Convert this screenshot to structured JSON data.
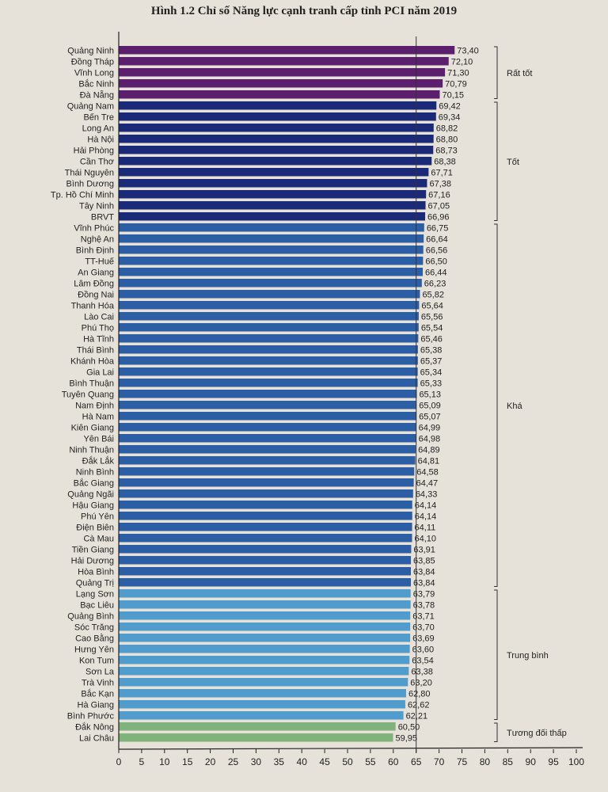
{
  "chart_data": {
    "type": "bar",
    "orientation": "horizontal",
    "title": "Hình 1.2 Chỉ số Năng lực cạnh tranh cấp tỉnh PCI năm 2019",
    "xlabel": "",
    "ylabel": "",
    "xlim": [
      0,
      100
    ],
    "xticks": [
      "0",
      "5",
      "10",
      "15",
      "20",
      "25",
      "30",
      "35",
      "40",
      "45",
      "50",
      "55",
      "60",
      "65",
      "70",
      "75",
      "80",
      "85",
      "90",
      "95",
      "100"
    ],
    "reference_line": 65,
    "categories": [
      "Quảng Ninh",
      "Đồng Tháp",
      "Vĩnh Long",
      "Bắc Ninh",
      "Đà Nẵng",
      "Quảng Nam",
      "Bến Tre",
      "Long An",
      "Hà Nội",
      "Hải Phòng",
      "Cần Thơ",
      "Thái Nguyên",
      "Bình Dương",
      "Tp. Hồ Chí Minh",
      "Tây Ninh",
      "BRVT",
      "Vĩnh Phúc",
      "Nghệ An",
      "Bình Định",
      "TT-Huế",
      "An Giang",
      "Lâm Đồng",
      "Đồng Nai",
      "Thanh Hóa",
      "Lào Cai",
      "Phú Thọ",
      "Hà Tĩnh",
      "Thái Bình",
      "Khánh Hòa",
      "Gia Lai",
      "Bình Thuận",
      "Tuyên Quang",
      "Nam Định",
      "Hà Nam",
      "Kiên Giang",
      "Yên Bái",
      "Ninh Thuận",
      "Đắk Lắk",
      "Ninh Bình",
      "Bắc Giang",
      "Quảng Ngãi",
      "Hậu Giang",
      "Phú Yên",
      "Điện Biên",
      "Cà Mau",
      "Tiền Giang",
      "Hải Dương",
      "Hòa Bình",
      "Quảng Trị",
      "Lạng Sơn",
      "Bạc Liêu",
      "Quảng Bình",
      "Sóc Trăng",
      "Cao Bằng",
      "Hưng Yên",
      "Kon Tum",
      "Sơn La",
      "Trà Vinh",
      "Bắc Kạn",
      "Hà Giang",
      "Bình Phước",
      "Đắk Nông",
      "Lai Châu"
    ],
    "values": [
      73.4,
      72.1,
      71.3,
      70.79,
      70.15,
      69.42,
      69.34,
      68.82,
      68.8,
      68.73,
      68.38,
      67.71,
      67.38,
      67.16,
      67.05,
      66.96,
      66.75,
      66.64,
      66.56,
      66.5,
      66.44,
      66.23,
      65.82,
      65.64,
      65.56,
      65.54,
      65.46,
      65.38,
      65.37,
      65.34,
      65.33,
      65.13,
      65.09,
      65.07,
      64.99,
      64.98,
      64.89,
      64.81,
      64.58,
      64.47,
      64.33,
      64.14,
      64.14,
      64.11,
      64.1,
      63.91,
      63.85,
      63.84,
      63.84,
      63.79,
      63.78,
      63.71,
      63.7,
      63.69,
      63.6,
      63.54,
      63.38,
      63.2,
      62.8,
      62.62,
      62.21,
      60.5,
      59.95
    ],
    "value_labels": [
      "73,40",
      "72,10",
      "71,30",
      "70,79",
      "70,15",
      "69,42",
      "69,34",
      "68,82",
      "68,80",
      "68,73",
      "68,38",
      "67,71",
      "67,38",
      "67,16",
      "67,05",
      "66,96",
      "66,75",
      "66,64",
      "66,56",
      "66,50",
      "66,44",
      "66,23",
      "65,82",
      "65,64",
      "65,56",
      "65,54",
      "65,46",
      "65,38",
      "65,37",
      "65,34",
      "65,33",
      "65,13",
      "65,09",
      "65,07",
      "64,99",
      "64,98",
      "64,89",
      "64,81",
      "64,58",
      "64,47",
      "64,33",
      "64,14",
      "64,14",
      "64,11",
      "64,10",
      "63,91",
      "63,85",
      "63,84",
      "63,84",
      "63,79",
      "63,78",
      "63,71",
      "63,70",
      "63,69",
      "63,60",
      "63,54",
      "63,38",
      "63,20",
      "62,80",
      "62,62",
      "62,21",
      "60,50",
      "59,95"
    ],
    "groups": [
      {
        "name": "Rất tốt",
        "count": 5,
        "color": "#5b1f6e"
      },
      {
        "name": "Tốt",
        "count": 11,
        "color": "#1b2a78"
      },
      {
        "name": "Khá",
        "count": 33,
        "color": "#2c5ea6"
      },
      {
        "name": "Trung bình",
        "count": 12,
        "color": "#4f9ccd"
      },
      {
        "name": "Tương đối thấp",
        "count": 2,
        "color": "#80b27c"
      }
    ]
  }
}
